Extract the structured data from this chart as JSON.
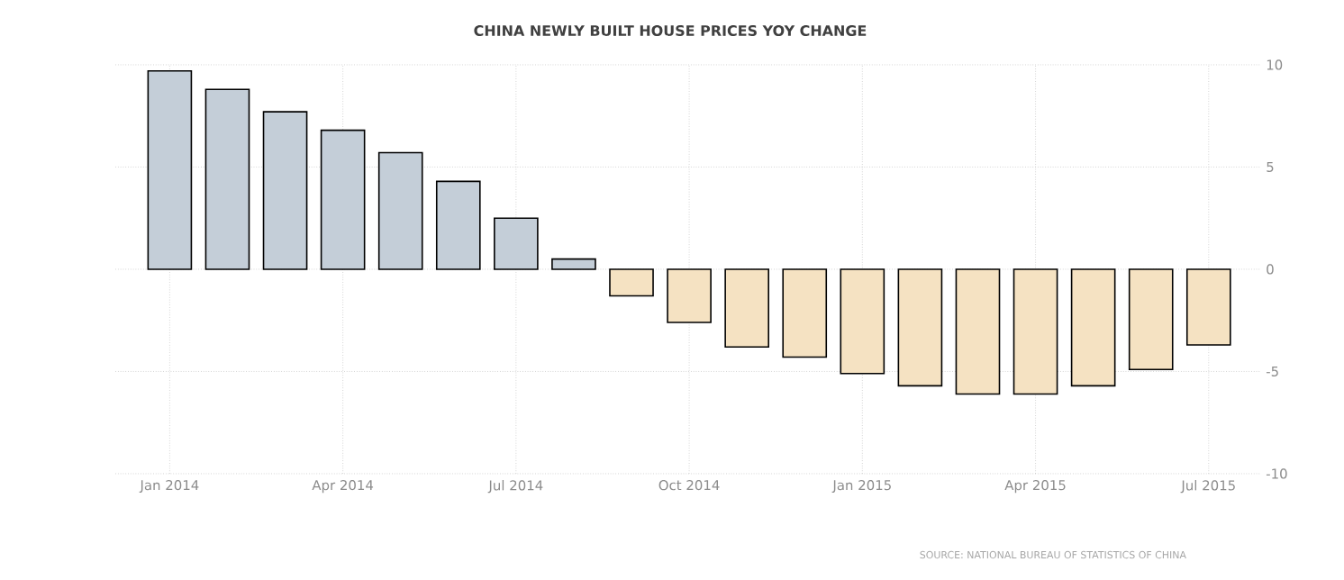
{
  "chart_data": {
    "type": "bar",
    "title": "CHINA NEWLY BUILT HOUSE PRICES YOY CHANGE",
    "categories": [
      "Jan 2014",
      null,
      null,
      "Apr 2014",
      null,
      null,
      "Jul 2014",
      null,
      null,
      "Oct 2014",
      null,
      null,
      "Jan 2015",
      null,
      null,
      "Apr 2015",
      null,
      null,
      "Jul 2015"
    ],
    "values": [
      9.7,
      8.8,
      7.7,
      6.8,
      5.7,
      4.3,
      2.5,
      0.5,
      -1.3,
      -2.6,
      -3.8,
      -4.3,
      -5.1,
      -5.7,
      -6.1,
      -6.1,
      -5.7,
      -4.9,
      -3.7
    ],
    "colors": [
      "#c4ced8",
      "#c4ced8",
      "#c4ced8",
      "#c4ced8",
      "#c4ced8",
      "#c4ced8",
      "#c4ced8",
      "#c4ced8",
      "#f5e2c2",
      "#f5e2c2",
      "#f5e2c2",
      "#f5e2c2",
      "#f5e2c2",
      "#f5e2c2",
      "#f5e2c2",
      "#f5e2c2",
      "#f5e2c2",
      "#f5e2c2",
      "#f5e2c2"
    ],
    "ylim": [
      -10,
      10
    ],
    "yticks": [
      -10,
      -5,
      0,
      5,
      10
    ],
    "grid": true,
    "annotations": [
      "SOURCE: NATIONAL BUREAU OF STATISTICS OF CHINA"
    ]
  }
}
